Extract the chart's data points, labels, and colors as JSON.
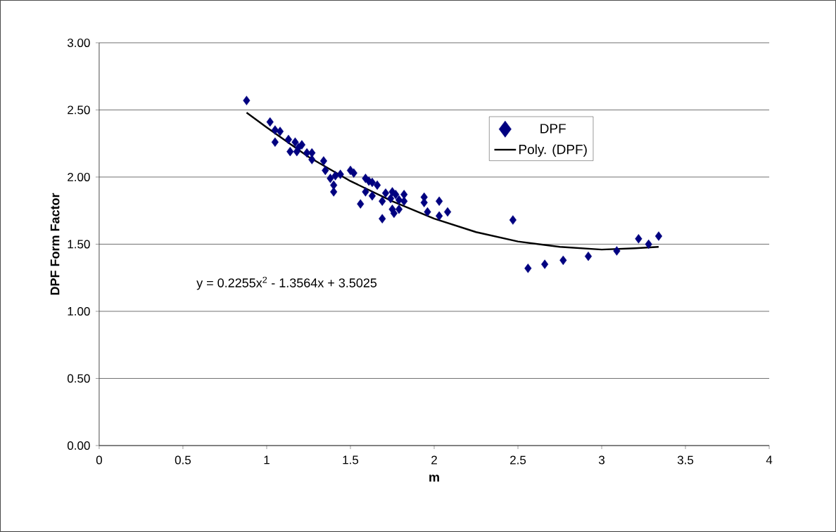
{
  "chart_data": {
    "type": "scatter",
    "xlabel": "m",
    "ylabel": "DPF Form Factor",
    "series": [
      {
        "name": "DPF",
        "color": "#000080",
        "marker": "diamond",
        "x": [
          0.88,
          1.02,
          1.05,
          1.05,
          1.08,
          1.13,
          1.14,
          1.17,
          1.18,
          1.19,
          1.21,
          1.24,
          1.27,
          1.27,
          1.34,
          1.35,
          1.38,
          1.4,
          1.4,
          1.41,
          1.44,
          1.5,
          1.52,
          1.56,
          1.59,
          1.61,
          1.63,
          1.66,
          1.59,
          1.63,
          1.71,
          1.75,
          1.77,
          1.82,
          1.69,
          1.74,
          1.79,
          1.82,
          1.75,
          1.76,
          1.79,
          1.69,
          1.94,
          1.94,
          2.03,
          1.96,
          2.03,
          2.08,
          2.47,
          2.56,
          2.66,
          2.77,
          2.92,
          3.09,
          3.22,
          3.28,
          3.34
        ],
        "values": [
          2.57,
          2.41,
          2.35,
          2.26,
          2.34,
          2.28,
          2.19,
          2.26,
          2.19,
          2.22,
          2.24,
          2.18,
          2.18,
          2.13,
          2.12,
          2.05,
          1.99,
          1.94,
          1.89,
          2.01,
          2.02,
          2.05,
          2.03,
          1.8,
          1.99,
          1.97,
          1.96,
          1.94,
          1.89,
          1.86,
          1.88,
          1.89,
          1.87,
          1.87,
          1.82,
          1.84,
          1.83,
          1.82,
          1.76,
          1.73,
          1.76,
          1.69,
          1.85,
          1.81,
          1.82,
          1.74,
          1.71,
          1.74,
          1.68,
          1.32,
          1.35,
          1.38,
          1.41,
          1.45,
          1.54,
          1.5,
          1.56
        ]
      },
      {
        "name": "Poly. (DPF)",
        "type": "line",
        "color": "#000000",
        "marker": "none",
        "line_style": "solid",
        "x": [
          0.88,
          1.0,
          1.25,
          1.5,
          1.75,
          2.0,
          2.25,
          2.5,
          2.75,
          3.0,
          3.2,
          3.34
        ],
        "values": [
          2.48,
          2.37,
          2.15,
          1.97,
          1.82,
          1.69,
          1.59,
          1.52,
          1.48,
          1.46,
          1.47,
          1.48
        ]
      }
    ],
    "xlim": [
      0,
      4
    ],
    "xticks": [
      0,
      0.5,
      1,
      1.5,
      2,
      2.5,
      3,
      3.5,
      4
    ],
    "ylim": [
      0,
      3
    ],
    "yticks": [
      {
        "value": 0,
        "label": "0.00"
      },
      {
        "value": 0.5,
        "label": "0.50"
      },
      {
        "value": 1,
        "label": "1.00"
      },
      {
        "value": 1.5,
        "label": "1.50"
      },
      {
        "value": 2,
        "label": "2.00"
      },
      {
        "value": 2.5,
        "label": "2.50"
      },
      {
        "value": 3,
        "label": "3.00"
      }
    ],
    "grid": "y",
    "legend": "top right",
    "annotations": [
      "y = 0.2255x$^{2}$ - 1.3564x + 3.5025"
    ]
  }
}
